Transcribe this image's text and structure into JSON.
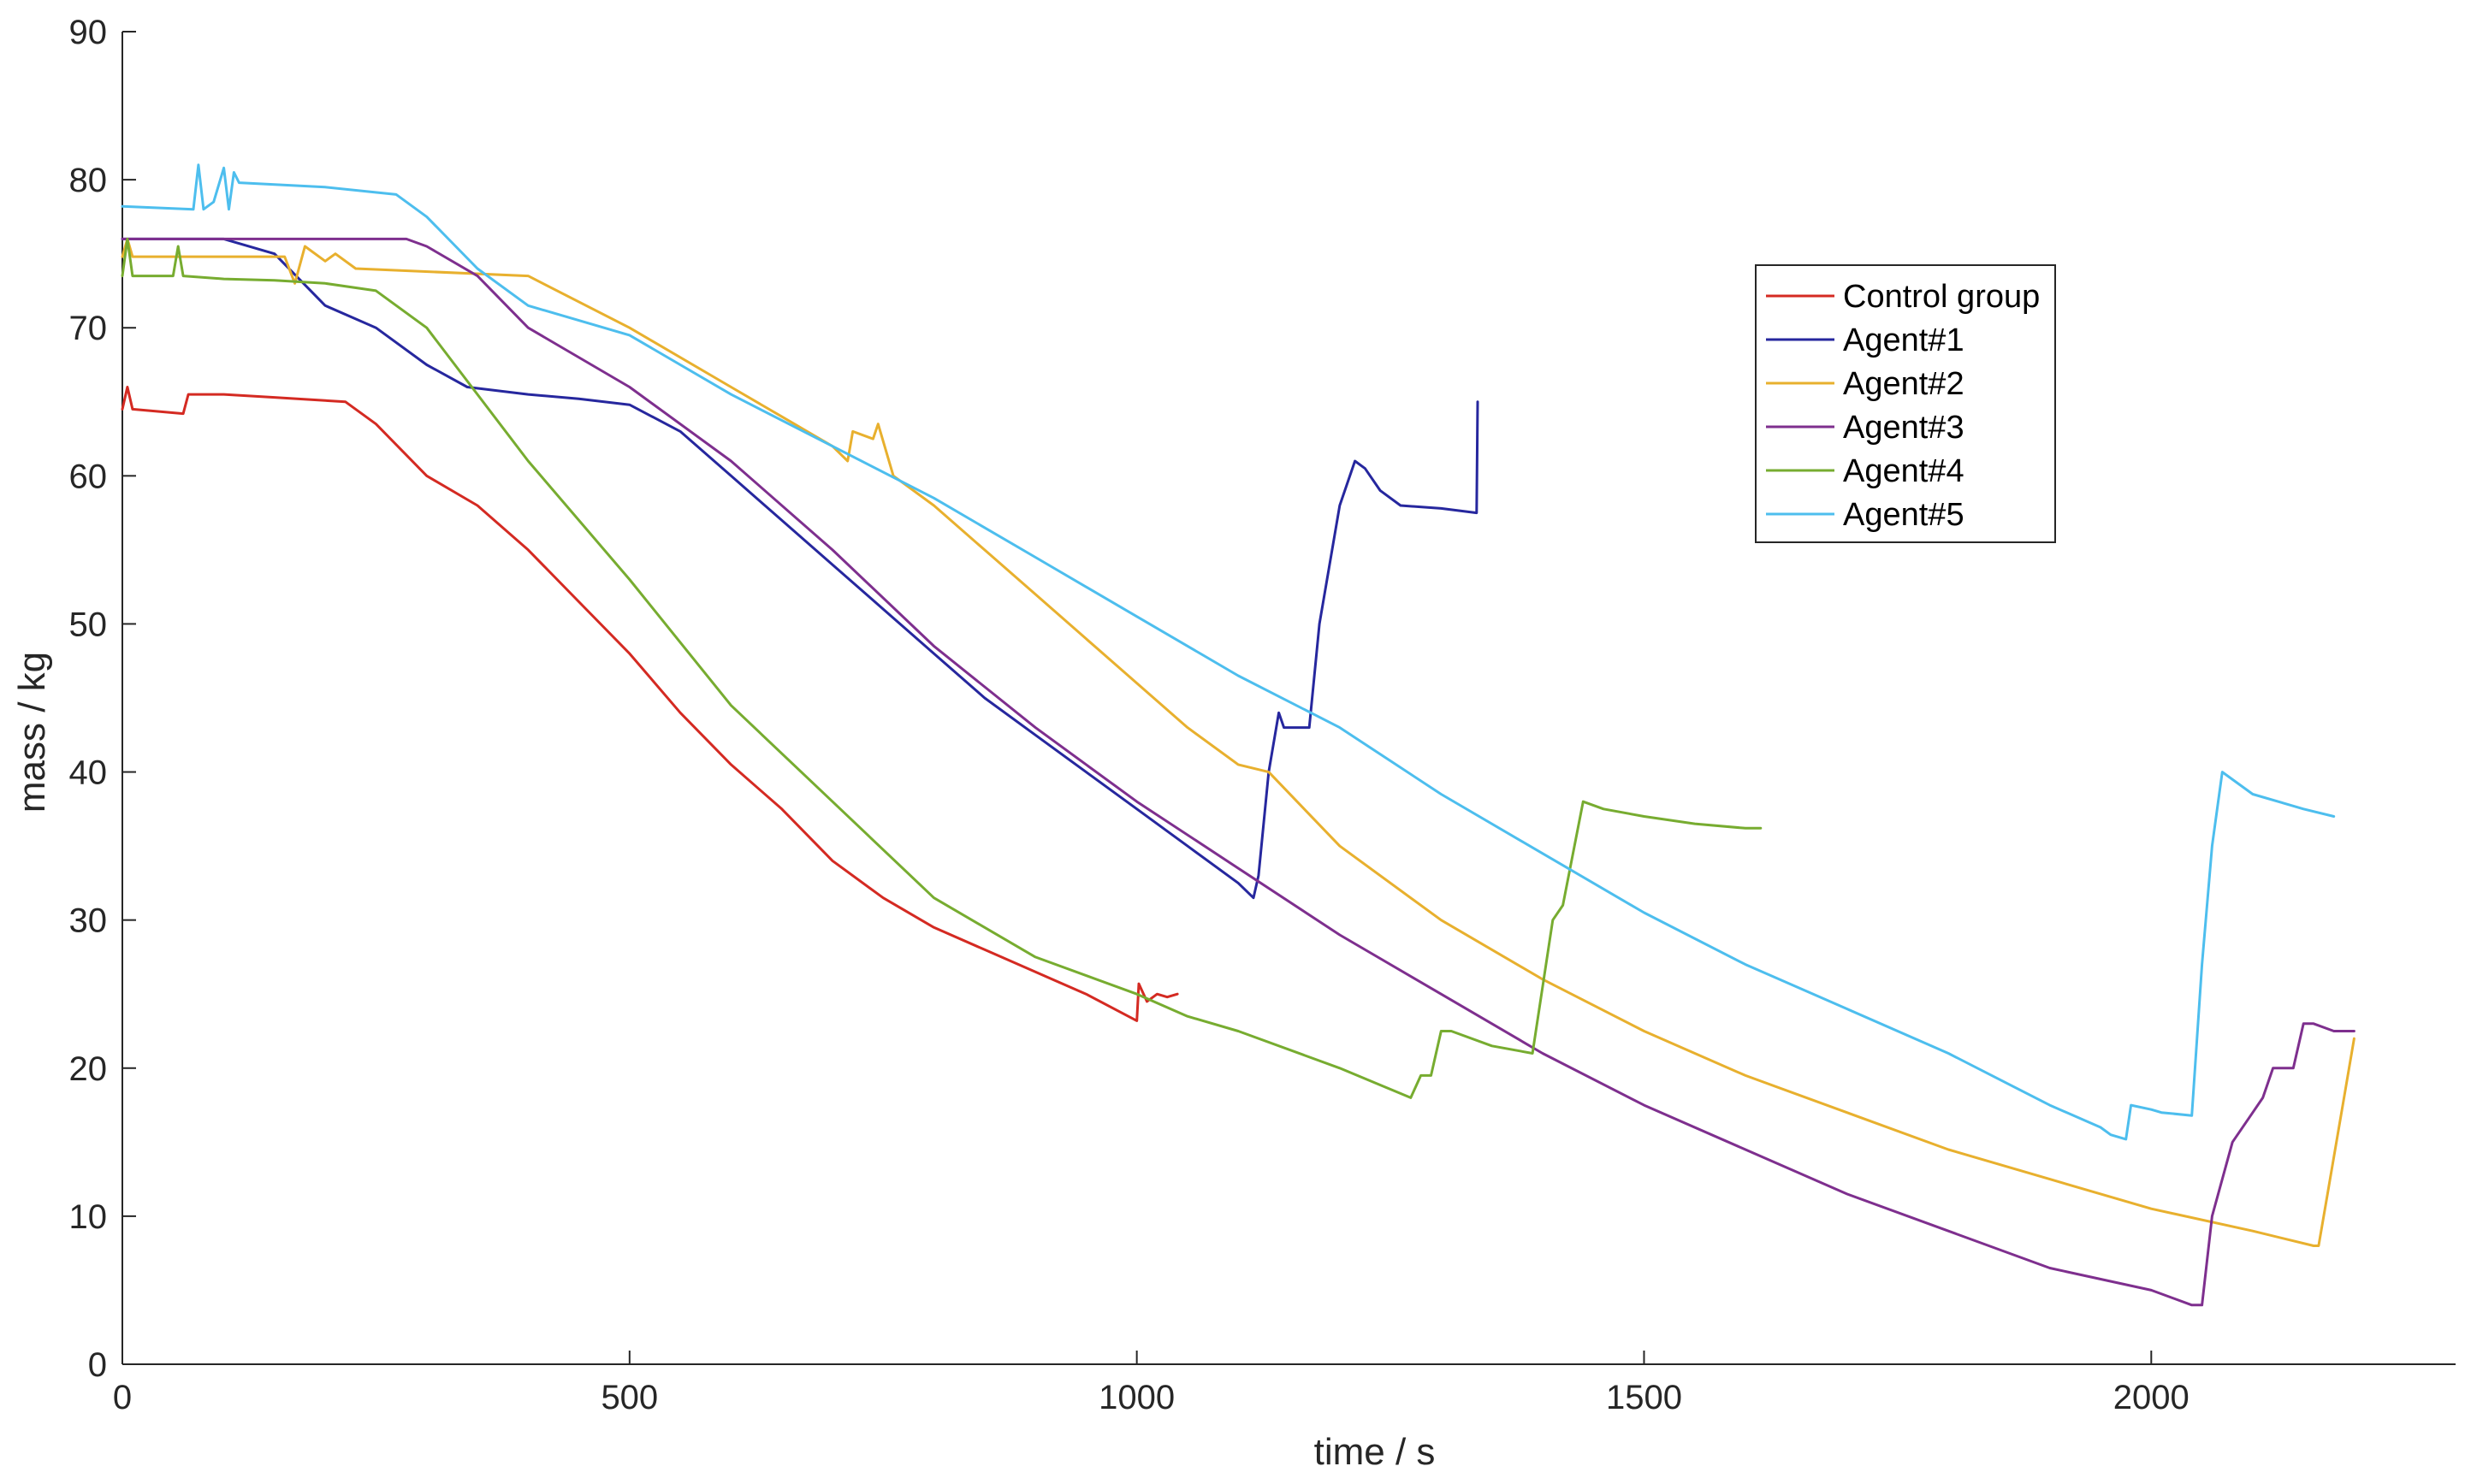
{
  "chart_data": {
    "type": "line",
    "title": "",
    "xlabel": "time / s",
    "ylabel": "mass / kg",
    "xlim": [
      0,
      2300
    ],
    "ylim": [
      0,
      90
    ],
    "xticks": [
      0,
      500,
      1000,
      1500,
      2000
    ],
    "yticks": [
      0,
      10,
      20,
      30,
      40,
      50,
      60,
      70,
      80,
      90
    ],
    "grid": false,
    "legend_position": "top-right",
    "series": [
      {
        "name": "Control group",
        "color": "#D42A22",
        "x": [
          0,
          5,
          10,
          60,
          65,
          100,
          150,
          220,
          250,
          300,
          350,
          400,
          450,
          500,
          550,
          600,
          650,
          700,
          750,
          800,
          850,
          900,
          950,
          1000,
          1002,
          1010,
          1020,
          1030,
          1040
        ],
        "y": [
          64.5,
          66,
          64.5,
          64.2,
          65.5,
          65.5,
          65.3,
          65,
          63.5,
          60,
          58,
          55,
          51.5,
          48,
          44,
          40.5,
          37.5,
          34,
          31.5,
          29.5,
          28,
          26.5,
          25,
          23.2,
          25.7,
          24.5,
          25,
          24.8,
          25
        ]
      },
      {
        "name": "Agent#1",
        "color": "#26279E",
        "x": [
          0,
          50,
          100,
          150,
          200,
          250,
          300,
          340,
          400,
          450,
          500,
          550,
          600,
          650,
          700,
          750,
          800,
          850,
          900,
          950,
          1000,
          1050,
          1100,
          1115,
          1120,
          1130,
          1140,
          1145,
          1170,
          1180,
          1200,
          1215,
          1225,
          1240,
          1260,
          1300,
          1335,
          1336
        ],
        "y": [
          76,
          76,
          76,
          75,
          71.5,
          70,
          67.5,
          66,
          65.5,
          65.2,
          64.8,
          63,
          60,
          57,
          54,
          51,
          48,
          45,
          42.5,
          40,
          37.5,
          35,
          32.5,
          31.5,
          33,
          40,
          44,
          43,
          43,
          50,
          58,
          61,
          60.5,
          59,
          58,
          57.8,
          57.5,
          65
        ]
      },
      {
        "name": "Agent#2",
        "color": "#E8B02E",
        "x": [
          0,
          5,
          10,
          100,
          160,
          170,
          180,
          200,
          210,
          230,
          400,
          500,
          600,
          650,
          700,
          715,
          720,
          740,
          745,
          760,
          800,
          850,
          900,
          950,
          1000,
          1050,
          1100,
          1130,
          1200,
          1300,
          1400,
          1500,
          1600,
          1700,
          1800,
          1900,
          2000,
          2100,
          2160,
          2165,
          2175,
          2190,
          2200
        ],
        "y": [
          74.8,
          76,
          74.8,
          74.8,
          74.8,
          73,
          75.5,
          74.5,
          75,
          74,
          73.5,
          70,
          66,
          64,
          62,
          61,
          63,
          62.5,
          63.5,
          60,
          58,
          55,
          52,
          49,
          46,
          43,
          40.5,
          40,
          35,
          30,
          26,
          22.5,
          19.5,
          17,
          14.5,
          12.5,
          10.5,
          9,
          8,
          8,
          12,
          18,
          22
        ]
      },
      {
        "name": "Agent#3",
        "color": "#7E2F8E",
        "x": [
          0,
          100,
          200,
          280,
          300,
          350,
          400,
          500,
          600,
          700,
          800,
          900,
          1000,
          1100,
          1200,
          1300,
          1400,
          1500,
          1600,
          1700,
          1800,
          1900,
          2000,
          2040,
          2050,
          2060,
          2080,
          2100,
          2110,
          2120,
          2140,
          2150,
          2160,
          2180,
          2200
        ],
        "y": [
          76,
          76,
          76,
          76,
          75.5,
          73.5,
          70,
          66,
          61,
          55,
          48.5,
          43,
          38,
          33.5,
          29,
          25,
          21,
          17.5,
          14.5,
          11.5,
          9,
          6.5,
          5,
          4,
          4,
          10,
          15,
          17,
          18,
          20,
          20,
          23,
          23,
          22.5,
          22.5
        ]
      },
      {
        "name": "Agent#4",
        "color": "#77AC30",
        "x": [
          0,
          5,
          10,
          50,
          55,
          60,
          100,
          150,
          200,
          250,
          300,
          400,
          500,
          600,
          700,
          800,
          900,
          1000,
          1050,
          1100,
          1200,
          1270,
          1280,
          1290,
          1300,
          1310,
          1350,
          1390,
          1410,
          1420,
          1440,
          1460,
          1500,
          1550,
          1600,
          1615
        ],
        "y": [
          73.5,
          76,
          73.5,
          73.5,
          75.5,
          73.5,
          73.3,
          73.2,
          73,
          72.5,
          70,
          61,
          53,
          44.5,
          38,
          31.5,
          27.5,
          25,
          23.5,
          22.5,
          20,
          18,
          19.5,
          19.5,
          22.5,
          22.5,
          21.5,
          21,
          30,
          31,
          38,
          37.5,
          37,
          36.5,
          36.2,
          36.2
        ]
      },
      {
        "name": "Agent#5",
        "color": "#4DBEEE",
        "x": [
          0,
          70,
          75,
          80,
          90,
          100,
          105,
          110,
          115,
          200,
          270,
          300,
          350,
          400,
          500,
          600,
          700,
          800,
          900,
          1000,
          1100,
          1200,
          1300,
          1400,
          1500,
          1600,
          1700,
          1800,
          1900,
          1950,
          1960,
          1975,
          1980,
          2000,
          2010,
          2040,
          2050,
          2060,
          2070,
          2100,
          2150,
          2180
        ],
        "y": [
          78.2,
          78,
          81,
          78,
          78.5,
          80.8,
          78,
          80.5,
          79.8,
          79.5,
          79,
          77.5,
          74,
          71.5,
          69.5,
          65.5,
          62,
          58.5,
          54.5,
          50.5,
          46.5,
          43,
          38.5,
          34.5,
          30.5,
          27,
          24,
          21,
          17.5,
          16,
          15.5,
          15.2,
          17.5,
          17.2,
          17,
          16.8,
          27,
          35,
          40,
          38.5,
          37.5,
          37
        ]
      }
    ]
  }
}
